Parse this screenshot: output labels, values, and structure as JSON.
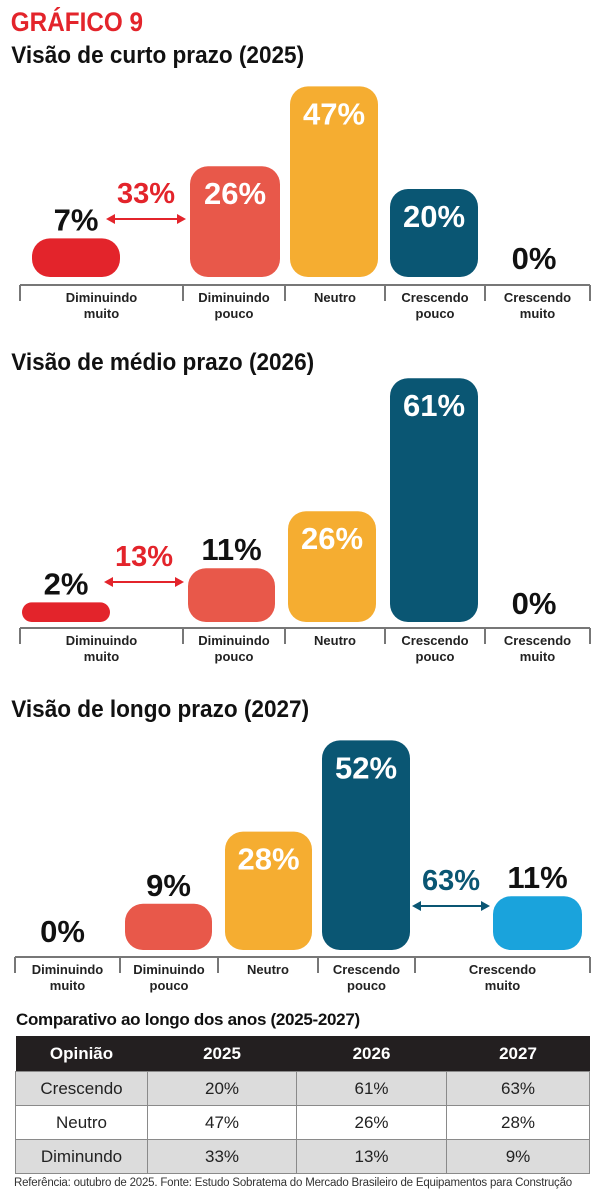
{
  "header": {
    "label": "GRÁFICO 9"
  },
  "colors": {
    "header_red": "#e3242b",
    "diminuindo_muito": "#e3242b",
    "diminuindo_pouco": "#e8584a",
    "neutro": "#f5ad31",
    "crescendo_pouco": "#0a5673",
    "crescendo_muito": "#1aa3dc",
    "table_header": "#231f20",
    "table_shaded": "#dcdcdc"
  },
  "chart_data": [
    {
      "type": "bar",
      "title": "Visão de curto prazo (2025)",
      "categories": [
        "Diminuindo muito",
        "Diminuindo pouco",
        "Neutro",
        "Crescendo pouco",
        "Crescendo muito"
      ],
      "values": [
        7,
        26,
        47,
        20,
        0
      ],
      "labels": [
        "7%",
        "26%",
        "47%",
        "20%",
        "0%"
      ],
      "annotation": {
        "label": "33%",
        "spans": [
          "Diminuindo muito",
          "Diminuindo pouco"
        ],
        "color": "#e3242b"
      }
    },
    {
      "type": "bar",
      "title": "Visão de médio prazo (2026)",
      "categories": [
        "Diminuindo muito",
        "Diminuindo pouco",
        "Neutro",
        "Crescendo pouco",
        "Crescendo muito"
      ],
      "values": [
        2,
        11,
        26,
        61,
        0
      ],
      "labels": [
        "2%",
        "11%",
        "26%",
        "61%",
        "0%"
      ],
      "annotation": {
        "label": "13%",
        "spans": [
          "Diminuindo muito",
          "Diminuindo pouco"
        ],
        "color": "#e3242b"
      }
    },
    {
      "type": "bar",
      "title": "Visão de longo prazo (2027)",
      "categories": [
        "Diminuindo muito",
        "Diminuindo pouco",
        "Neutro",
        "Crescendo pouco",
        "Crescendo muito"
      ],
      "values": [
        0,
        9,
        28,
        52,
        11
      ],
      "labels": [
        "0%",
        "9%",
        "28%",
        "52%",
        "11%"
      ],
      "annotation": {
        "label": "63%",
        "spans": [
          "Crescendo pouco",
          "Crescendo muito"
        ],
        "color": "#0a5673"
      }
    }
  ],
  "category_label_lines": [
    [
      "Diminuindo",
      "muito"
    ],
    [
      "Diminuindo",
      "pouco"
    ],
    [
      "Neutro"
    ],
    [
      "Crescendo",
      "pouco"
    ],
    [
      "Crescendo",
      "muito"
    ]
  ],
  "comparison": {
    "title": "Comparativo ao longo dos anos (2025-2027)",
    "columns": [
      "Opinião",
      "2025",
      "2026",
      "2027"
    ],
    "rows": [
      [
        "Crescendo",
        "20%",
        "61%",
        "63%"
      ],
      [
        "Neutro",
        "47%",
        "26%",
        "28%"
      ],
      [
        "Diminundo",
        "33%",
        "13%",
        "9%"
      ]
    ]
  },
  "footer": {
    "reference": "Referência: outubro de 2025. Fonte: Estudo Sobratema do Mercado Brasileiro de Equipamentos para Construção"
  }
}
